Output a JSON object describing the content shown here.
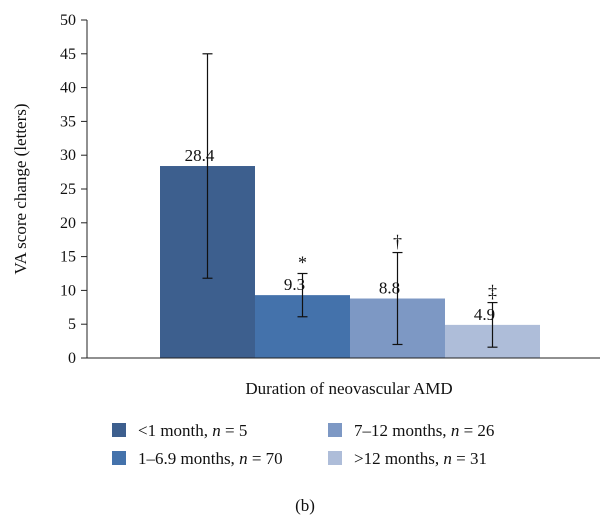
{
  "chart_data": {
    "type": "bar",
    "title": "",
    "xlabel": "Duration of neovascular AMD",
    "ylabel": "VA score change (letters)",
    "ylim": [
      0,
      50
    ],
    "yticks": [
      "0",
      "5",
      "10",
      "15",
      "20",
      "25",
      "30",
      "35",
      "40",
      "45",
      "50"
    ],
    "grid": false,
    "legend_position": "bottom",
    "series": [
      {
        "name_main": "<1 month, ",
        "name_n": "n",
        "name_count": " = 5",
        "value": 28.4,
        "value_label": "28.4",
        "error_low": 11.8,
        "error_high": 45.0,
        "marker": "",
        "color": "#3d5f8e"
      },
      {
        "name_main": "1–6.9 months, ",
        "name_n": "n",
        "name_count": " = 70",
        "value": 9.3,
        "value_label": "9.3",
        "error_low": 6.1,
        "error_high": 12.5,
        "marker": "*",
        "color": "#4472ab"
      },
      {
        "name_main": "7–12 months, ",
        "name_n": "n",
        "name_count": " = 26",
        "value": 8.8,
        "value_label": "8.8",
        "error_low": 2.0,
        "error_high": 15.6,
        "marker": "†",
        "color": "#7d98c4"
      },
      {
        "name_main": ">12 months, ",
        "name_n": "n",
        "name_count": " = 31",
        "value": 4.9,
        "value_label": "4.9",
        "error_low": 1.6,
        "error_high": 8.2,
        "marker": "‡",
        "color": "#aebdd9"
      }
    ],
    "panel_label": "(b)"
  }
}
